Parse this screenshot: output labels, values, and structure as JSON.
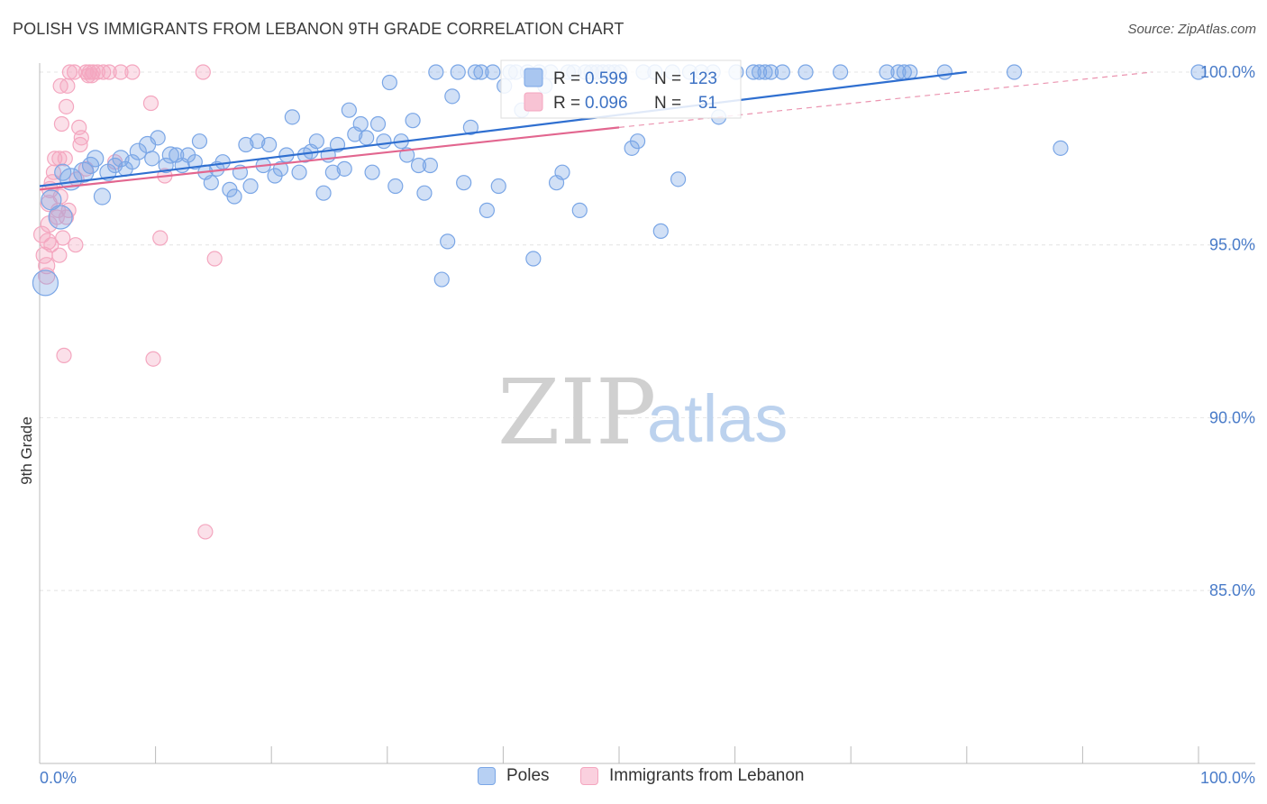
{
  "title": "POLISH VS IMMIGRANTS FROM LEBANON 9TH GRADE CORRELATION CHART",
  "source": "Source: ZipAtlas.com",
  "watermark": {
    "zip": "ZIP",
    "atlas": "atlas"
  },
  "chart_data": {
    "type": "scatter",
    "title": "POLISH VS IMMIGRANTS FROM LEBANON 9TH GRADE CORRELATION CHART",
    "xlabel": "",
    "ylabel": "9th Grade",
    "xlim": [
      0,
      105
    ],
    "ylim": [
      80,
      100.6
    ],
    "x_tick_labels": [
      "0.0%",
      "100.0%"
    ],
    "y_ticks": [
      100,
      95,
      90,
      85
    ],
    "y_tick_labels": [
      "100.0%",
      "95.0%",
      "90.0%",
      "85.0%"
    ],
    "legend_position": "top-center",
    "series": [
      {
        "name": "Poles",
        "color": "#7aa6e6",
        "line_color": "#2f6fd0",
        "R": "0.599",
        "N": "123",
        "trend": {
          "x": [
            0,
            80
          ],
          "y": [
            96.7,
            100.0
          ]
        },
        "points": [
          [
            0.5,
            93.9,
            14
          ],
          [
            1.8,
            95.8,
            13
          ],
          [
            1,
            96.3,
            11
          ],
          [
            2,
            97.1,
            9
          ],
          [
            2.7,
            96.9,
            12
          ],
          [
            3.8,
            97.1,
            11
          ],
          [
            4.4,
            97.3,
            9
          ],
          [
            4.8,
            97.5,
            9
          ],
          [
            5.4,
            96.4,
            9
          ],
          [
            5.9,
            97.1,
            9
          ],
          [
            6.5,
            97.3,
            8
          ],
          [
            7,
            97.5,
            9
          ],
          [
            7.4,
            97.2,
            8
          ],
          [
            8,
            97.4,
            8
          ],
          [
            8.5,
            97.7,
            9
          ],
          [
            9.3,
            97.9,
            9
          ],
          [
            9.7,
            97.5,
            8
          ],
          [
            10.2,
            98.1,
            8
          ],
          [
            10.9,
            97.3,
            8
          ],
          [
            11.3,
            97.6,
            9
          ],
          [
            11.8,
            97.6,
            8
          ],
          [
            12.3,
            97.3,
            8
          ],
          [
            12.8,
            97.6,
            8
          ],
          [
            13.4,
            97.4,
            8
          ],
          [
            13.8,
            98.0,
            8
          ],
          [
            14.3,
            97.1,
            8
          ],
          [
            14.8,
            96.8,
            8
          ],
          [
            15.3,
            97.2,
            8
          ],
          [
            15.8,
            97.4,
            8
          ],
          [
            16.4,
            96.6,
            8
          ],
          [
            16.8,
            96.4,
            8
          ],
          [
            17.3,
            97.1,
            8
          ],
          [
            17.8,
            97.9,
            8
          ],
          [
            18.2,
            96.7,
            8
          ],
          [
            18.8,
            98.0,
            8
          ],
          [
            19.3,
            97.3,
            8
          ],
          [
            19.8,
            97.9,
            8
          ],
          [
            20.3,
            97.0,
            8
          ],
          [
            20.8,
            97.2,
            8
          ],
          [
            21.3,
            97.6,
            8
          ],
          [
            21.8,
            98.7,
            8
          ],
          [
            22.4,
            97.1,
            8
          ],
          [
            22.9,
            97.6,
            8
          ],
          [
            23.4,
            97.7,
            8
          ],
          [
            23.9,
            98.0,
            8
          ],
          [
            24.5,
            96.5,
            8
          ],
          [
            24.9,
            97.6,
            8
          ],
          [
            25.3,
            97.1,
            8
          ],
          [
            25.7,
            97.9,
            8
          ],
          [
            26.3,
            97.2,
            8
          ],
          [
            26.7,
            98.9,
            8
          ],
          [
            27.2,
            98.2,
            8
          ],
          [
            27.7,
            98.5,
            8
          ],
          [
            28.2,
            98.1,
            8
          ],
          [
            28.7,
            97.1,
            8
          ],
          [
            29.2,
            98.5,
            8
          ],
          [
            29.7,
            98.0,
            8
          ],
          [
            30.2,
            99.7,
            8
          ],
          [
            30.7,
            96.7,
            8
          ],
          [
            31.2,
            98.0,
            8
          ],
          [
            31.7,
            97.6,
            8
          ],
          [
            32.2,
            98.6,
            8
          ],
          [
            32.7,
            97.3,
            8
          ],
          [
            33.2,
            96.5,
            8
          ],
          [
            33.7,
            97.3,
            8
          ],
          [
            34.2,
            100.0,
            8
          ],
          [
            34.7,
            94.0,
            8
          ],
          [
            35.2,
            95.1,
            8
          ],
          [
            35.6,
            99.3,
            8
          ],
          [
            36.1,
            100.0,
            8
          ],
          [
            36.6,
            96.8,
            8
          ],
          [
            37.2,
            98.4,
            8
          ],
          [
            37.6,
            100.0,
            8
          ],
          [
            38.1,
            100.0,
            8
          ],
          [
            38.6,
            96.0,
            8
          ],
          [
            39.1,
            100.0,
            8
          ],
          [
            39.6,
            96.7,
            8
          ],
          [
            40.1,
            99.6,
            8
          ],
          [
            40.6,
            100.0,
            8
          ],
          [
            41.1,
            100.0,
            8
          ],
          [
            41.6,
            98.9,
            8
          ],
          [
            42.1,
            100.0,
            8
          ],
          [
            42.6,
            94.6,
            8
          ],
          [
            43.1,
            100.0,
            8
          ],
          [
            43.6,
            99.6,
            8
          ],
          [
            44.1,
            100.0,
            8
          ],
          [
            44.6,
            96.8,
            8
          ],
          [
            45.1,
            97.1,
            8
          ],
          [
            45.6,
            100.0,
            8
          ],
          [
            46.1,
            100.0,
            8
          ],
          [
            46.6,
            96.0,
            8
          ],
          [
            47.1,
            100.0,
            8
          ],
          [
            47.6,
            100.0,
            8
          ],
          [
            48.1,
            100.0,
            8
          ],
          [
            48.6,
            100.0,
            8
          ],
          [
            49.1,
            100.0,
            8
          ],
          [
            49.6,
            100.0,
            8
          ],
          [
            50.1,
            100.0,
            8
          ],
          [
            51.1,
            97.8,
            8
          ],
          [
            51.6,
            98.0,
            8
          ],
          [
            52.1,
            100.0,
            8
          ],
          [
            53.1,
            100.0,
            8
          ],
          [
            53.6,
            95.4,
            8
          ],
          [
            54.6,
            100.0,
            8
          ],
          [
            55.1,
            96.9,
            8
          ],
          [
            56.1,
            100.0,
            8
          ],
          [
            57.1,
            100.0,
            8
          ],
          [
            58.1,
            100.0,
            8
          ],
          [
            58.6,
            98.7,
            8
          ],
          [
            60.1,
            100.0,
            8
          ],
          [
            61.6,
            100.0,
            8
          ],
          [
            62.1,
            100.0,
            8
          ],
          [
            62.6,
            100.0,
            8
          ],
          [
            63.1,
            100.0,
            8
          ],
          [
            64.1,
            100.0,
            8
          ],
          [
            66.1,
            100.0,
            8
          ],
          [
            69.1,
            100.0,
            8
          ],
          [
            73.1,
            100.0,
            8
          ],
          [
            74.1,
            100.0,
            8
          ],
          [
            74.6,
            100.0,
            8
          ],
          [
            75.1,
            100.0,
            8
          ],
          [
            78.1,
            100.0,
            8
          ],
          [
            84.1,
            100.0,
            8
          ],
          [
            88.1,
            97.8,
            8
          ],
          [
            100,
            100.0,
            8
          ]
        ]
      },
      {
        "name": "Immigrants from Lebanon",
        "color": "#f4a6bf",
        "line_color": "#e2668f",
        "R": "0.096",
        "N": "51",
        "trend": {
          "x": [
            0,
            50
          ],
          "y": [
            96.6,
            98.4
          ]
        },
        "trend_dashed": {
          "x": [
            50,
            96
          ],
          "y": [
            98.4,
            100.0
          ]
        },
        "points": [
          [
            0.2,
            95.3,
            9
          ],
          [
            0.4,
            94.7,
            9
          ],
          [
            0.6,
            94.1,
            9
          ],
          [
            0.6,
            94.4,
            9
          ],
          [
            0.7,
            95.1,
            9
          ],
          [
            0.8,
            95.6,
            9
          ],
          [
            0.8,
            96.2,
            9
          ],
          [
            0.9,
            96.6,
            9
          ],
          [
            1.0,
            95.0,
            8
          ],
          [
            1.1,
            96.8,
            9
          ],
          [
            1.2,
            97.1,
            8
          ],
          [
            1.3,
            97.5,
            8
          ],
          [
            1.5,
            95.8,
            8
          ],
          [
            1.6,
            96.0,
            8
          ],
          [
            1.7,
            94.7,
            8
          ],
          [
            1.7,
            97.5,
            8
          ],
          [
            1.8,
            96.4,
            8
          ],
          [
            1.8,
            99.6,
            8
          ],
          [
            1.9,
            98.5,
            8
          ],
          [
            2.0,
            95.2,
            8
          ],
          [
            2.1,
            91.8,
            8
          ],
          [
            2.2,
            97.5,
            8
          ],
          [
            2.3,
            95.8,
            8
          ],
          [
            2.3,
            99.0,
            8
          ],
          [
            2.4,
            99.6,
            8
          ],
          [
            2.5,
            96.0,
            8
          ],
          [
            2.6,
            100.0,
            8
          ],
          [
            3.0,
            100.0,
            8
          ],
          [
            3.1,
            95.0,
            8
          ],
          [
            3.2,
            96.9,
            8
          ],
          [
            3.4,
            98.4,
            8
          ],
          [
            3.5,
            97.9,
            8
          ],
          [
            3.6,
            98.1,
            8
          ],
          [
            4.0,
            97.2,
            8
          ],
          [
            4.0,
            100.0,
            8
          ],
          [
            4.2,
            99.9,
            8
          ],
          [
            4.3,
            100.0,
            8
          ],
          [
            4.5,
            99.9,
            8
          ],
          [
            4.6,
            100.0,
            8
          ],
          [
            5.0,
            100.0,
            8
          ],
          [
            5.5,
            100.0,
            8
          ],
          [
            6.0,
            100.0,
            8
          ],
          [
            6.5,
            97.4,
            8
          ],
          [
            7.0,
            100.0,
            8
          ],
          [
            8.0,
            100.0,
            8
          ],
          [
            9.6,
            99.1,
            8
          ],
          [
            9.8,
            91.7,
            8
          ],
          [
            10.4,
            95.2,
            8
          ],
          [
            10.8,
            97.0,
            8
          ],
          [
            14.1,
            100.0,
            8
          ],
          [
            14.3,
            86.7,
            8
          ],
          [
            15.1,
            94.6,
            8
          ]
        ]
      }
    ]
  },
  "legend_box": {
    "r_label": "R =",
    "n_label": "N ="
  },
  "bottom_legend": {
    "poles": "Poles",
    "lebanon": "Immigrants from Lebanon"
  }
}
